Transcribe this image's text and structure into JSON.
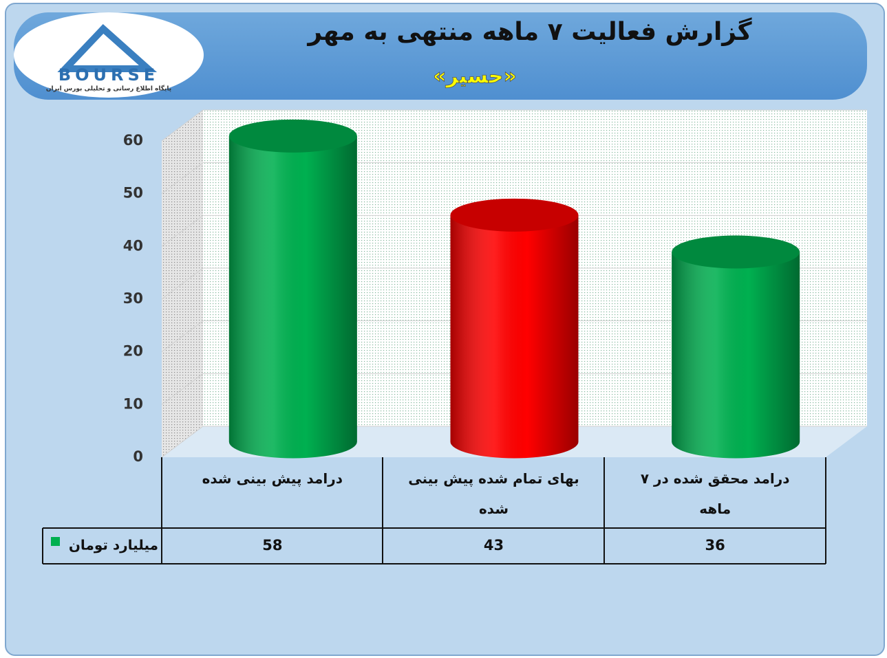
{
  "logo": {
    "name": "BOURSE",
    "tagline": "پایگاه اطلاع رسانی و تحلیلی بورس ایران"
  },
  "chart_data": {
    "type": "bar",
    "title": "گزارش فعالیت ۷ ماهه منتهی به مهر",
    "subtitle": "«حسیر»",
    "categories": [
      "درامد پیش بینی شده",
      "بهای تمام شده پیش بینی شده",
      "درامد محقق شده در ۷ ماهه"
    ],
    "series": [
      {
        "name": "میلیارد تومان",
        "color": "#00b050",
        "values": [
          58,
          43,
          36
        ],
        "colors": [
          "#00b050",
          "#ff0000",
          "#00b050"
        ]
      }
    ],
    "ylim": [
      0,
      60
    ],
    "yticks": [
      0,
      10,
      20,
      30,
      40,
      50,
      60
    ],
    "grid": true,
    "data_table": true
  }
}
